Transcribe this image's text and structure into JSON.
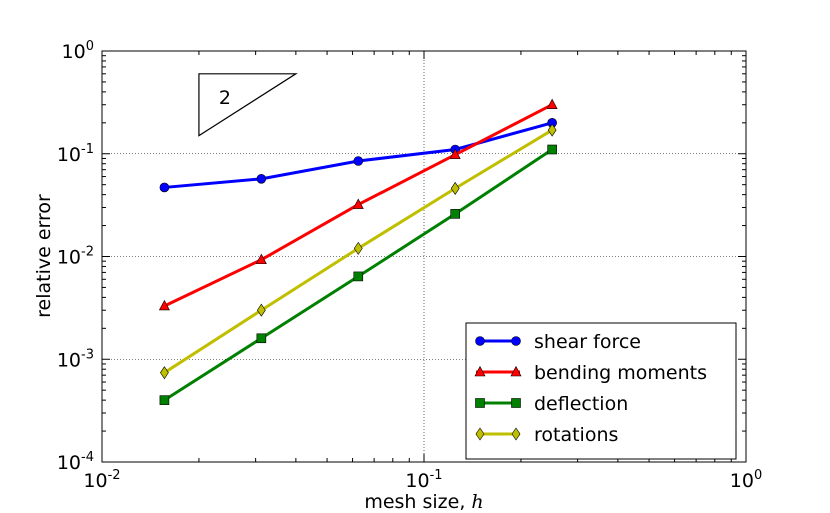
{
  "chart_data": {
    "type": "line",
    "xscale": "log",
    "yscale": "log",
    "xlim": [
      0.01,
      1
    ],
    "ylim": [
      0.0001,
      1
    ],
    "grid": true,
    "xlabel": "mesh size, ",
    "xlabel_var": "h",
    "ylabel": "relative error",
    "legend_position": "lower-right",
    "x_ticks": [
      {
        "value": 0.01,
        "base": "10",
        "exp": "-2"
      },
      {
        "value": 0.1,
        "base": "10",
        "exp": "-1"
      },
      {
        "value": 1,
        "base": "10",
        "exp": "0"
      }
    ],
    "y_ticks": [
      {
        "value": 1,
        "base": "10",
        "exp": "0"
      },
      {
        "value": 0.1,
        "base": "10",
        "exp": "-1"
      },
      {
        "value": 0.01,
        "base": "10",
        "exp": "-2"
      },
      {
        "value": 0.001,
        "base": "10",
        "exp": "-3"
      },
      {
        "value": 0.0001,
        "base": "10",
        "exp": "-4"
      }
    ],
    "x": [
      0.015625,
      0.03125,
      0.0625,
      0.125,
      0.25
    ],
    "series": [
      {
        "name": "shear force",
        "color": "#0000ff",
        "marker": "circle",
        "values": [
          0.047,
          0.057,
          0.085,
          0.11,
          0.2
        ]
      },
      {
        "name": "bending moments",
        "color": "#ff0000",
        "marker": "triangle",
        "values": [
          0.0033,
          0.0093,
          0.032,
          0.098,
          0.3
        ]
      },
      {
        "name": "deflection",
        "color": "#008000",
        "marker": "square",
        "values": [
          0.0004,
          0.0016,
          0.0064,
          0.026,
          0.11
        ]
      },
      {
        "name": "rotations",
        "color": "#bfbf00",
        "marker": "diamond",
        "values": [
          0.00074,
          0.003,
          0.012,
          0.046,
          0.17
        ]
      }
    ],
    "slope_triangle": {
      "label": "2",
      "x_left": 0.02,
      "x_right": 0.04,
      "y_bottom": 0.15,
      "y_top": 0.6
    }
  }
}
